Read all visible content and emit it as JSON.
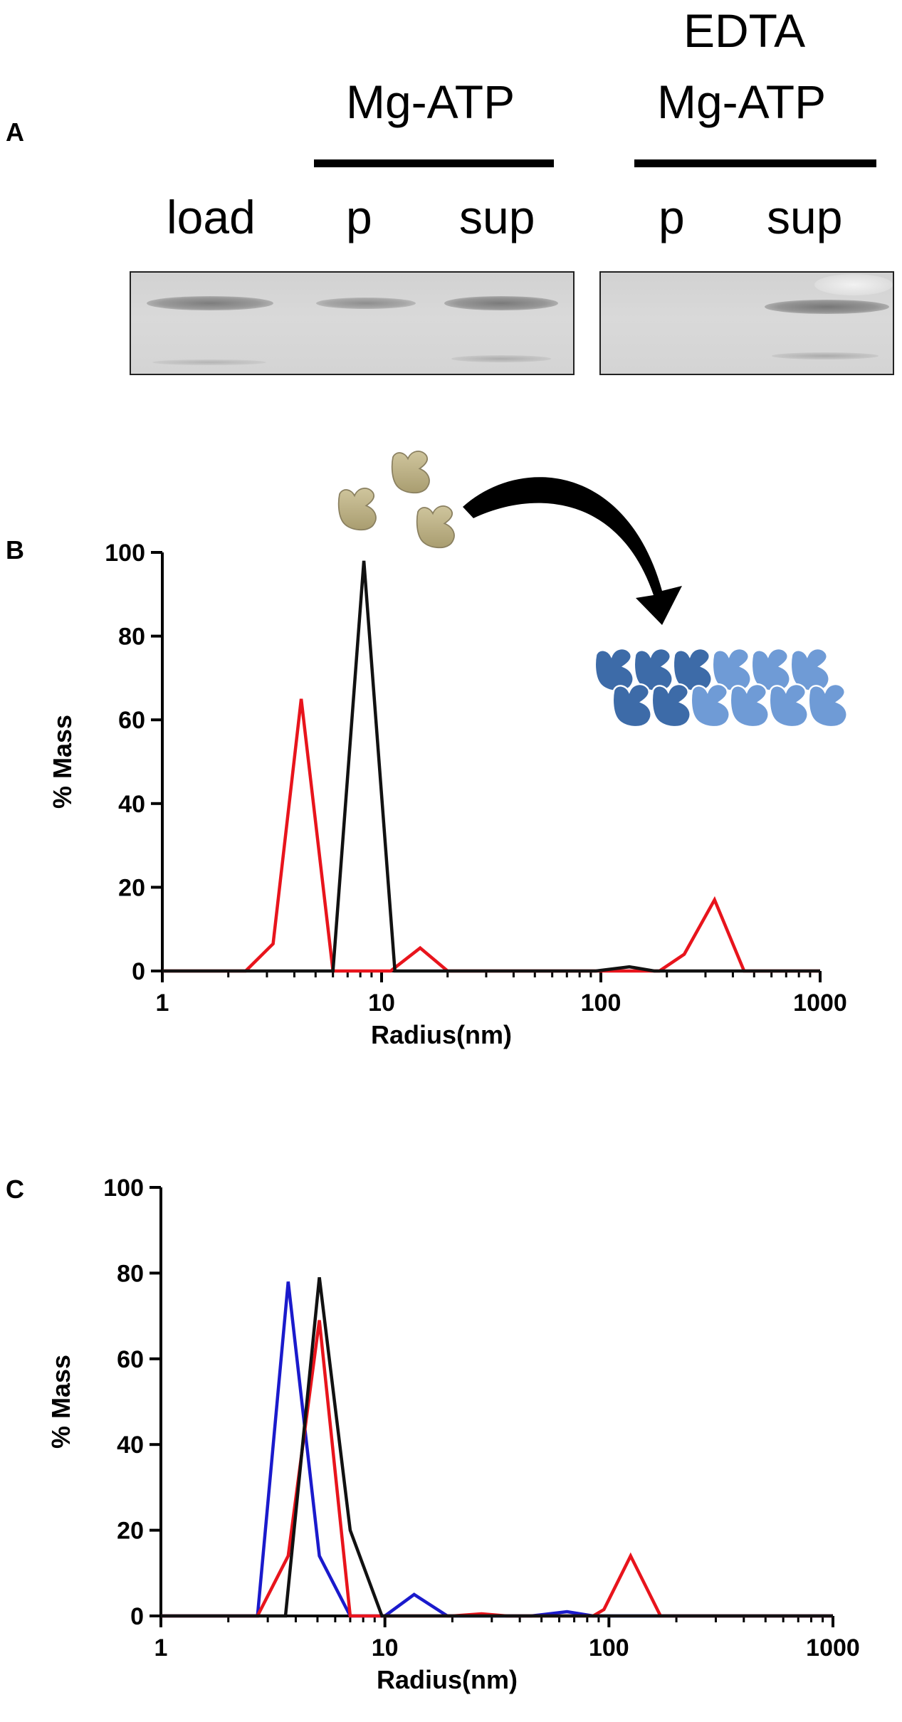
{
  "panelA": {
    "letter": "A",
    "group1": "Mg-ATP",
    "group2_line1": "EDTA",
    "group2_line2": "Mg-ATP",
    "lanes": [
      "load",
      "p",
      "sup",
      "p",
      "sup"
    ]
  },
  "chart_data": [
    {
      "panel": "B",
      "type": "line",
      "xscale": "log",
      "xlabel": "Radius(nm)",
      "ylabel": "% Mass",
      "xlim": [
        1,
        1000
      ],
      "ylim": [
        0,
        100
      ],
      "xticks": [
        "1",
        "10",
        "100",
        "1000"
      ],
      "yticks": [
        "0",
        "20",
        "40",
        "60",
        "80",
        "100"
      ],
      "series": [
        {
          "color": "#e8141c",
          "points": [
            [
              1,
              0
            ],
            [
              2.4,
              0
            ],
            [
              3.2,
              6.5
            ],
            [
              4.3,
              65
            ],
            [
              6,
              0
            ],
            [
              11,
              0
            ],
            [
              15,
              5.5
            ],
            [
              20,
              0
            ],
            [
              185,
              0
            ],
            [
              240,
              4
            ],
            [
              330,
              17
            ],
            [
              450,
              0
            ],
            [
              1000,
              0
            ]
          ]
        },
        {
          "color": "#111111",
          "points": [
            [
              1,
              0
            ],
            [
              6,
              0
            ],
            [
              8.3,
              98
            ],
            [
              11.5,
              0
            ],
            [
              95,
              0
            ],
            [
              135,
              1
            ],
            [
              175,
              0
            ],
            [
              1000,
              0
            ]
          ]
        }
      ]
    },
    {
      "panel": "C",
      "type": "line",
      "xscale": "log",
      "xlabel": "Radius(nm)",
      "ylabel": "% Mass",
      "xlim": [
        1,
        1000
      ],
      "ylim": [
        0,
        100
      ],
      "xticks": [
        "1",
        "10",
        "100",
        "1000"
      ],
      "yticks": [
        "0",
        "20",
        "40",
        "60",
        "80",
        "100"
      ],
      "series": [
        {
          "color": "#1a1acc",
          "points": [
            [
              1,
              0
            ],
            [
              2.7,
              0
            ],
            [
              3.7,
              78
            ],
            [
              5.1,
              14
            ],
            [
              7,
              0
            ],
            [
              10,
              0
            ],
            [
              13.5,
              5
            ],
            [
              19,
              0
            ],
            [
              45,
              0
            ],
            [
              65,
              1
            ],
            [
              85,
              0
            ],
            [
              1000,
              0
            ]
          ]
        },
        {
          "color": "#e8141c",
          "points": [
            [
              1,
              0
            ],
            [
              2.7,
              0
            ],
            [
              3.7,
              14
            ],
            [
              5.1,
              69
            ],
            [
              7,
              0
            ],
            [
              20,
              0
            ],
            [
              27,
              0.5
            ],
            [
              35,
              0
            ],
            [
              85,
              0
            ],
            [
              95,
              1.5
            ],
            [
              125,
              14
            ],
            [
              170,
              0
            ],
            [
              1000,
              0
            ]
          ]
        },
        {
          "color": "#111111",
          "points": [
            [
              1,
              0
            ],
            [
              3.6,
              0
            ],
            [
              5.1,
              79
            ],
            [
              7,
              20
            ],
            [
              9.7,
              0
            ],
            [
              1000,
              0
            ]
          ]
        }
      ]
    }
  ]
}
